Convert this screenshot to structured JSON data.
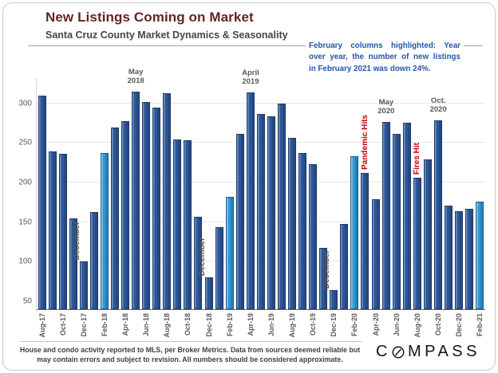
{
  "header": {
    "title": "New Listings Coming on Market",
    "subtitle": "Santa Cruz County Market Dynamics & Seasonality"
  },
  "callout": {
    "lines": [
      "February columns highlighted: Year",
      "over year, the number of new listings",
      "in February 2021 was down 24%.",
      "February columns highlighted: Year over year, the number of new listings in February 2021 was down 24%."
    ],
    "color": "#2456a8"
  },
  "chart_data": {
    "type": "bar",
    "title": "New Listings Coming on Market",
    "subtitle": "Santa Cruz County Market Dynamics & Seasonality",
    "xlabel": "",
    "ylabel": "",
    "grid": true,
    "legend": "none",
    "categories": [
      "Aug-17",
      "Sep-17",
      "Oct-17",
      "Nov-17",
      "Dec-17",
      "Jan-18",
      "Feb-18",
      "Mar-18",
      "Apr-18",
      "May-18",
      "Jun-18",
      "Jul-18",
      "Aug-18",
      "Sep-18",
      "Oct-18",
      "Nov-18",
      "Dec-18",
      "Jan-19",
      "Feb-19",
      "Mar-19",
      "Apr-19",
      "May-19",
      "Jun-19",
      "Jul-19",
      "Aug-19",
      "Sep-19",
      "Oct-19",
      "Nov-19",
      "Dec-19",
      "Jan-20",
      "Feb-20",
      "Mar-20",
      "Apr-20",
      "May-20",
      "Jun-20",
      "Jul-20",
      "Aug-20",
      "Sep-20",
      "Oct-20",
      "Nov-20",
      "Dec-20",
      "Jan-21",
      "Feb-21"
    ],
    "values": [
      310,
      239,
      236,
      155,
      100,
      163,
      237,
      270,
      278,
      315,
      302,
      295,
      313,
      254,
      253,
      157,
      80,
      144,
      182,
      262,
      314,
      287,
      284,
      300,
      256,
      237,
      223,
      118,
      64,
      148,
      233,
      212,
      179,
      277,
      262,
      276,
      206,
      229,
      279,
      171,
      164,
      167,
      176
    ],
    "highlighted_months": [
      "Feb-18",
      "Feb-19",
      "Feb-20",
      "Feb-21"
    ],
    "xtick_every": 2,
    "yticks": [
      50,
      100,
      150,
      200,
      250,
      300
    ],
    "ylim": [
      40,
      332
    ],
    "bar_color": "#2e5697",
    "bar_border": "#1e3a66",
    "highlight_color": "#2f97d4",
    "highlight_border": "#1a5d8f",
    "peak_annotations": [
      {
        "line1": "May",
        "line2": "2018",
        "month": "May-18"
      },
      {
        "line1": "April",
        "line2": "2019",
        "month": "Apr-19"
      },
      {
        "line1": "May",
        "line2": "2020",
        "month": "May-20"
      },
      {
        "line1": "Oct.",
        "line2": "2020",
        "month": "Oct-20"
      }
    ],
    "december_labels": {
      "text": "December",
      "months": [
        "Dec-17",
        "Dec-18",
        "Dec-19"
      ]
    },
    "event_labels": [
      {
        "text": "Pandemic Hits",
        "month": "Mar-20"
      },
      {
        "text": "Fires Hit",
        "month": "Aug-20"
      }
    ],
    "event_color": "#c00000"
  },
  "footer": {
    "lines": [
      "House and condo activity reported to MLS, per Broker Metrics. Data from sources deemed reliable but",
      "may contain errors and subject to revision. All numbers should be considered approximate."
    ]
  },
  "logo": {
    "word": "COMPASS",
    "c": "C",
    "mpass": "MPASS"
  }
}
